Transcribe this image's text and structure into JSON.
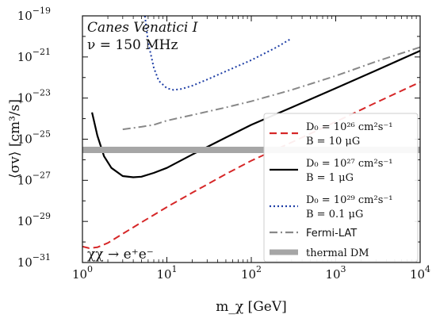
{
  "chart_data": {
    "type": "line",
    "xscale": "log",
    "yscale": "log",
    "xlim": [
      1,
      10000
    ],
    "ylim": [
      1e-31,
      1e-19
    ],
    "xlabel": "m_χ [GeV]",
    "ylabel": "⟨σv⟩ [cm³/s]",
    "x_ticks": [
      {
        "mantissa": "10",
        "exp": "0"
      },
      {
        "mantissa": "10",
        "exp": "1"
      },
      {
        "mantissa": "10",
        "exp": "2"
      },
      {
        "mantissa": "10",
        "exp": "3"
      },
      {
        "mantissa": "10",
        "exp": "4"
      }
    ],
    "y_ticks": [
      {
        "mantissa": "10",
        "exp": "−31"
      },
      {
        "mantissa": "10",
        "exp": "−29"
      },
      {
        "mantissa": "10",
        "exp": "−27"
      },
      {
        "mantissa": "10",
        "exp": "−25"
      },
      {
        "mantissa": "10",
        "exp": "−23"
      },
      {
        "mantissa": "10",
        "exp": "−21"
      },
      {
        "mantissa": "10",
        "exp": "−19"
      }
    ],
    "annotations": {
      "target": "Canes Venatici I",
      "frequency": "ν = 150 MHz",
      "channel": "χχ → e⁺e⁻"
    },
    "legend_placement": "lower-right",
    "series": [
      {
        "name_line1": "D₀ = 10²⁶ cm²s⁻¹",
        "name_line2": "B = 10 μG",
        "color": "#d62728",
        "style": "dashed",
        "x": [
          1.0,
          1.2,
          1.5,
          2.0,
          3.0,
          5.0,
          10,
          20,
          50,
          100,
          300,
          1000,
          3000,
          10000
        ],
        "y": [
          6e-31,
          5e-31,
          5.5e-31,
          9e-31,
          2.5e-30,
          9e-30,
          5e-29,
          2.5e-28,
          2e-27,
          9e-27,
          7e-26,
          7e-25,
          6e-24,
          6e-23
        ]
      },
      {
        "name_line1": "D₀ = 10²⁷ cm²s⁻¹",
        "name_line2": "B = 1 μG",
        "color": "#000000",
        "style": "solid",
        "x": [
          1.3,
          1.5,
          1.8,
          2.2,
          3.0,
          4.0,
          5.0,
          7.0,
          10,
          20,
          50,
          100,
          300,
          1000,
          3000,
          10000
        ],
        "y": [
          2e-24,
          1.5e-25,
          1.5e-26,
          4e-27,
          1.6e-27,
          1.4e-27,
          1.5e-27,
          2.3e-27,
          4e-27,
          1.8e-26,
          1.2e-25,
          5e-25,
          3.5e-24,
          3e-23,
          2.2e-22,
          2e-21
        ]
      },
      {
        "name_line1": "D₀ = 10²⁹ cm²s⁻¹",
        "name_line2": "B = 0.1 μG",
        "color": "#1f3fa6",
        "style": "dotted",
        "x": [
          5.5,
          6.0,
          7.0,
          8.0,
          10,
          12,
          15,
          20,
          30,
          50,
          100,
          200,
          300
        ],
        "y": [
          1e-19,
          5e-21,
          3e-22,
          7e-23,
          3e-23,
          2.5e-23,
          2.8e-23,
          4e-23,
          8e-23,
          2e-22,
          7e-22,
          3e-21,
          8e-21
        ]
      },
      {
        "name": "Fermi-LAT",
        "color": "#888888",
        "style": "dashdot",
        "x": [
          3,
          5,
          7,
          10,
          20,
          50,
          100,
          300,
          1000,
          3000,
          10000
        ],
        "y": [
          3e-25,
          4e-25,
          5e-25,
          8e-25,
          1.5e-24,
          3.5e-24,
          7e-24,
          2.5e-23,
          1.2e-22,
          6e-22,
          3e-21
        ]
      },
      {
        "name": "thermal DM",
        "color": "#a6a6a6",
        "style": "band",
        "x": [
          1,
          10000
        ],
        "y": [
          3e-26,
          3e-26
        ]
      }
    ]
  }
}
